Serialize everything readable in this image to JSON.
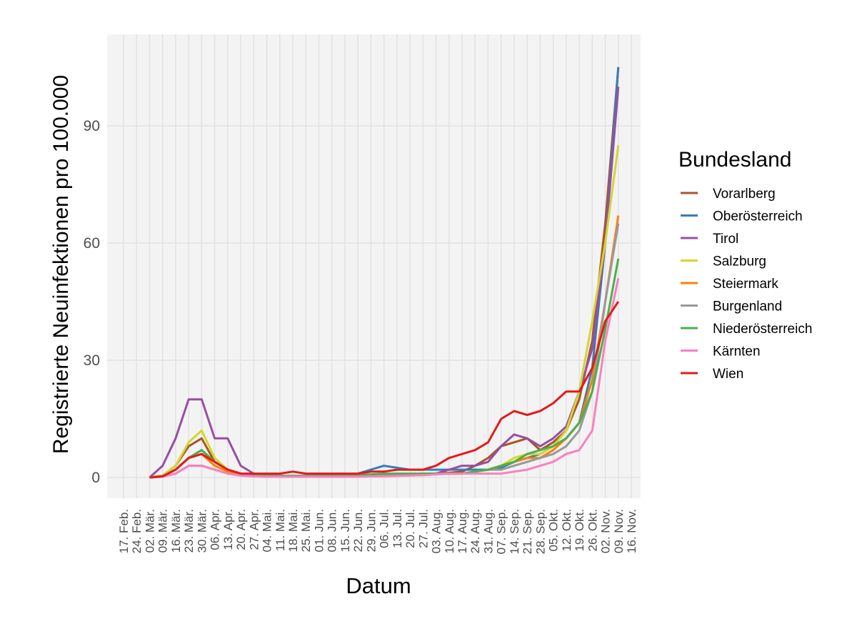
{
  "chart_data": {
    "type": "line",
    "x_label": "Datum",
    "y_label": "Registrierte Neuinfektionen pro 100.000",
    "legend_title": "Bundesland",
    "legend": "right",
    "grid": true,
    "categories": [
      "17. Feb.",
      "24. Feb.",
      "02. Mär.",
      "09. Mär.",
      "16. Mär.",
      "23. Mär.",
      "30. Mär.",
      "06. Apr.",
      "13. Apr.",
      "20. Apr.",
      "27. Apr.",
      "04. Mai.",
      "11. Mai.",
      "18. Mai.",
      "25. Mai.",
      "01. Jun.",
      "08. Jun.",
      "15. Jun.",
      "22. Jun.",
      "29. Jun.",
      "06. Jul.",
      "13. Jul.",
      "20. Jul.",
      "27. Jul.",
      "03. Aug.",
      "10. Aug.",
      "17. Aug.",
      "24. Aug.",
      "31. Aug.",
      "07. Sep.",
      "14. Sep.",
      "21. Sep.",
      "28. Sep.",
      "05. Okt.",
      "12. Okt.",
      "19. Okt.",
      "26. Okt.",
      "02. Nov.",
      "09. Nov.",
      "16. Nov."
    ],
    "ylim": [
      -5.3,
      113.4
    ],
    "yticks": [
      0,
      30,
      60,
      90
    ],
    "series": [
      {
        "name": "Vorarlberg",
        "color": "#a65628",
        "values": [
          null,
          null,
          0,
          0.5,
          3,
          8,
          10,
          4,
          2,
          1,
          0.5,
          0.3,
          0.3,
          0.3,
          0.3,
          0.3,
          0.3,
          0.3,
          0.4,
          0.5,
          0.5,
          0.6,
          0.8,
          1,
          1,
          1.2,
          1.5,
          3,
          5,
          8,
          9,
          10,
          7,
          9,
          12,
          20,
          35,
          65,
          105,
          null
        ]
      },
      {
        "name": "Oberösterreich",
        "color": "#377eb8",
        "values": [
          null,
          null,
          0,
          0.5,
          2,
          5,
          7,
          4,
          2,
          1,
          0.5,
          0.4,
          0.4,
          0.4,
          0.4,
          0.5,
          0.5,
          0.6,
          1,
          2,
          3,
          2.5,
          2,
          2,
          2,
          2,
          2,
          2,
          2,
          2.5,
          4,
          5,
          6,
          8,
          10,
          14,
          28,
          60,
          105,
          null
        ]
      },
      {
        "name": "Tirol",
        "color": "#984ea3",
        "values": [
          null,
          null,
          0,
          3,
          10,
          20,
          20,
          10,
          10,
          3,
          1,
          0.5,
          0.4,
          0.3,
          0.3,
          0.3,
          0.3,
          0.3,
          0.3,
          0.4,
          0.5,
          0.5,
          0.6,
          0.8,
          1,
          2,
          3,
          3,
          4,
          8,
          11,
          10,
          8,
          10,
          13,
          22,
          33,
          60,
          100,
          null
        ]
      },
      {
        "name": "Salzburg",
        "color": "#d4d62f",
        "values": [
          null,
          null,
          0,
          0.5,
          3,
          9,
          12,
          5,
          2,
          1,
          0.5,
          0.3,
          0.3,
          0.3,
          0.3,
          0.3,
          0.3,
          0.3,
          0.3,
          0.4,
          0.5,
          0.5,
          0.6,
          0.8,
          1,
          1,
          1,
          1.5,
          2,
          3,
          5,
          6,
          6,
          8,
          12,
          22,
          40,
          60,
          85,
          null
        ]
      },
      {
        "name": "Steiermark",
        "color": "#ff7f00",
        "values": [
          null,
          null,
          0,
          0.3,
          2,
          5,
          6,
          3,
          1.5,
          0.8,
          0.4,
          0.3,
          0.3,
          0.3,
          0.3,
          0.3,
          0.3,
          0.3,
          0.3,
          0.4,
          0.5,
          0.5,
          0.6,
          0.8,
          1,
          1,
          1,
          1.5,
          2,
          3,
          4,
          5,
          5,
          7,
          10,
          14,
          25,
          45,
          67,
          null
        ]
      },
      {
        "name": "Burgenland",
        "color": "#999999",
        "values": [
          null,
          null,
          0,
          0.2,
          1,
          3,
          3,
          2,
          1,
          0.5,
          0.3,
          0.2,
          0.2,
          0.2,
          0.2,
          0.2,
          0.2,
          0.2,
          0.2,
          0.3,
          0.4,
          0.4,
          0.5,
          0.6,
          0.8,
          1,
          1,
          1.5,
          2,
          2,
          3,
          4,
          5,
          6,
          8,
          12,
          22,
          45,
          65,
          null
        ]
      },
      {
        "name": "Niederösterreich",
        "color": "#4daf4a",
        "values": [
          null,
          null,
          0,
          0.3,
          2,
          5,
          7,
          4,
          2,
          1,
          0.5,
          0.4,
          0.4,
          0.4,
          0.4,
          0.4,
          0.4,
          0.5,
          0.6,
          0.8,
          1,
          1,
          1,
          1,
          1,
          1,
          1,
          1.5,
          2,
          3,
          4,
          6,
          7,
          8,
          10,
          14,
          22,
          38,
          56,
          null
        ]
      },
      {
        "name": "Kärnten",
        "color": "#f781bf",
        "values": [
          null,
          null,
          0,
          0.2,
          1,
          3,
          3,
          2,
          1,
          0.5,
          0.3,
          0.2,
          0.2,
          0.2,
          0.2,
          0.2,
          0.2,
          0.2,
          0.2,
          0.3,
          0.3,
          0.4,
          0.5,
          0.6,
          0.8,
          1,
          1,
          1,
          1,
          1,
          1.5,
          2,
          3,
          4,
          6,
          7,
          12,
          35,
          51,
          null
        ]
      },
      {
        "name": "Wien",
        "color": "#e41a1c",
        "values": [
          null,
          null,
          0,
          0.3,
          2,
          5,
          6,
          4,
          2,
          1,
          1,
          1,
          1,
          1.5,
          1,
          1,
          1,
          1,
          1,
          1.5,
          1.5,
          2,
          2,
          2,
          3,
          5,
          6,
          7,
          9,
          15,
          17,
          16,
          17,
          19,
          22,
          22,
          28,
          40,
          45,
          null
        ]
      }
    ]
  }
}
